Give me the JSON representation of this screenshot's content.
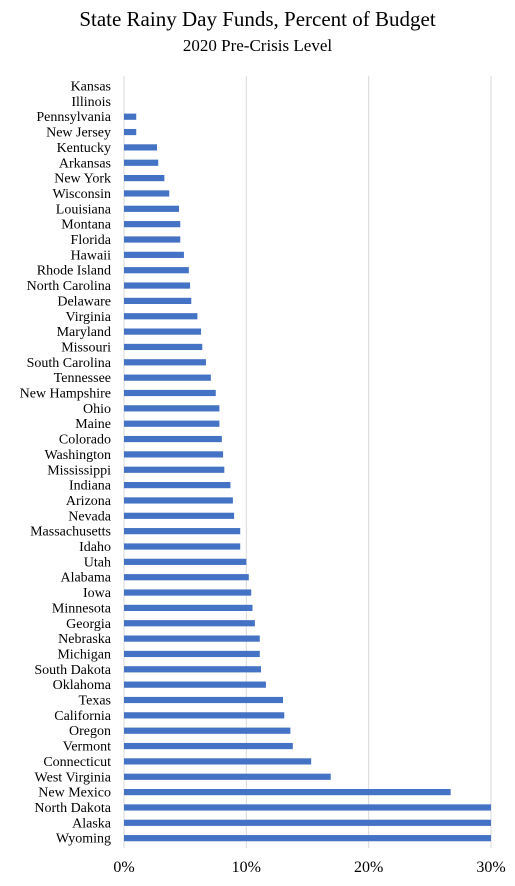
{
  "chart_data": {
    "type": "bar",
    "orientation": "horizontal",
    "title": "State Rainy Day Funds, Percent of Budget",
    "subtitle": "2020 Pre-Crisis Level",
    "xlabel": "",
    "ylabel": "",
    "xlim": [
      0,
      30
    ],
    "x_ticks": [
      "0%",
      "10%",
      "20%",
      "30%"
    ],
    "x_tick_values": [
      0,
      10,
      20,
      30
    ],
    "grid": true,
    "bar_color": "#4472C4",
    "categories": [
      "Kansas",
      "Illinois",
      "Pennsylvania",
      "New Jersey",
      "Kentucky",
      "Arkansas",
      "New York",
      "Wisconsin",
      "Louisiana",
      "Montana",
      "Florida",
      "Hawaii",
      "Rhode Island",
      "North Carolina",
      "Delaware",
      "Virginia",
      "Maryland",
      "Missouri",
      "South Carolina",
      "Tennessee",
      "New Hampshire",
      "Ohio",
      "Maine",
      "Colorado",
      "Washington",
      "Mississippi",
      "Indiana",
      "Arizona",
      "Nevada",
      "Massachusetts",
      "Idaho",
      "Utah",
      "Alabama",
      "Iowa",
      "Minnesota",
      "Georgia",
      "Nebraska",
      "Michigan",
      "South Dakota",
      "Oklahoma",
      "Texas",
      "California",
      "Oregon",
      "Vermont",
      "Connecticut",
      "West Virginia",
      "New Mexico",
      "North Dakota",
      "Alaska",
      "Wyoming"
    ],
    "values": [
      0,
      0,
      1.0,
      1.0,
      2.7,
      2.8,
      3.3,
      3.7,
      4.5,
      4.6,
      4.6,
      4.9,
      5.3,
      5.4,
      5.5,
      6.0,
      6.3,
      6.4,
      6.7,
      7.1,
      7.5,
      7.8,
      7.8,
      8.0,
      8.1,
      8.2,
      8.7,
      8.9,
      9.0,
      9.5,
      9.5,
      10.0,
      10.2,
      10.4,
      10.5,
      10.7,
      11.1,
      11.1,
      11.2,
      11.6,
      13.0,
      13.1,
      13.6,
      13.8,
      15.3,
      16.9,
      26.7,
      30,
      30,
      30
    ]
  }
}
